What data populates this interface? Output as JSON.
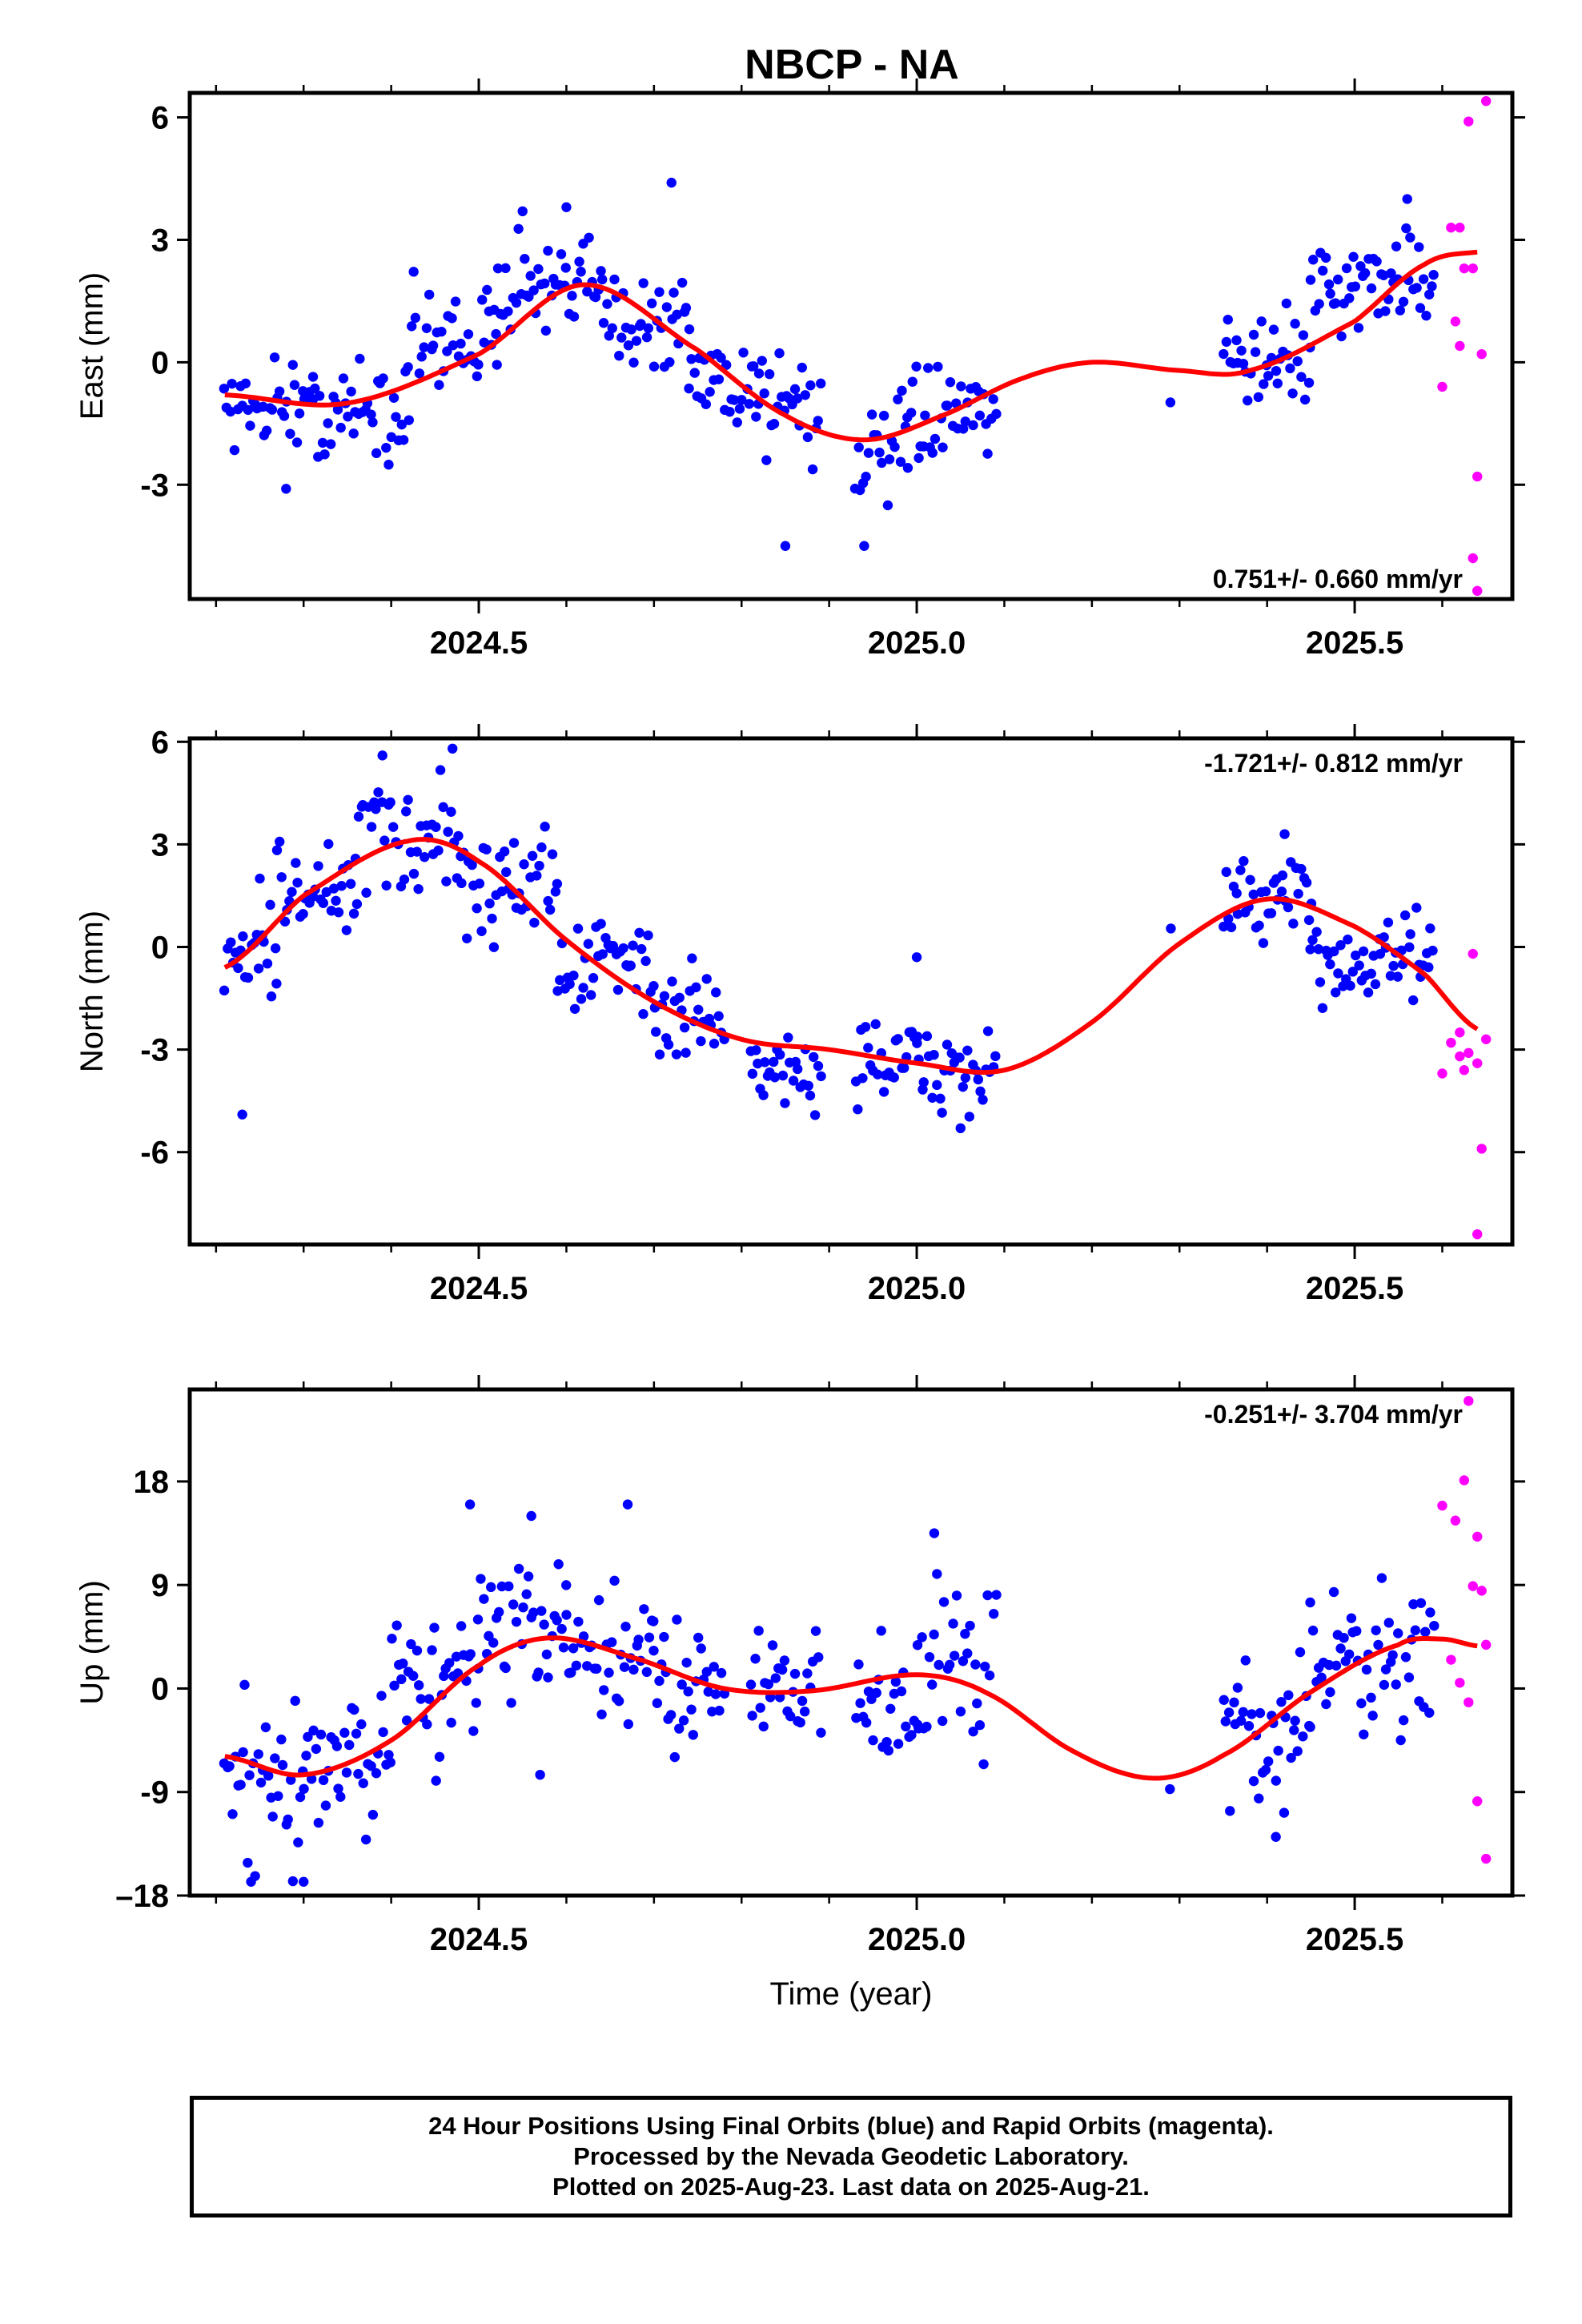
{
  "title": "NBCP - NA",
  "colors": {
    "final": "#0000ff",
    "rapid": "#ff00ff",
    "model": "#ff0000",
    "frame": "#000000"
  },
  "footer": {
    "line1": "24 Hour Positions Using Final Orbits (blue) and Rapid Orbits (magenta).",
    "line2": "Processed by the Nevada Geodetic Laboratory.",
    "line3": "Plotted on 2025-Aug-23. Last data on 2025-Aug-21."
  },
  "chart_data": [
    {
      "type": "scatter",
      "ylabel": "East (mm)",
      "rate": "0.751+/- 0.660 mm/yr",
      "xlim": [
        2024.17,
        2025.68
      ],
      "ylim": [
        -5.8,
        6.6
      ],
      "yticks": [
        6,
        3,
        0,
        -3
      ],
      "xticks": [
        2024.5,
        2025.0,
        2025.5
      ],
      "rate_position": "bottom-right",
      "model_knots": [
        [
          2024.21,
          -0.8
        ],
        [
          2024.35,
          -1.0
        ],
        [
          2024.5,
          0.2
        ],
        [
          2024.62,
          1.9
        ],
        [
          2024.75,
          0.3
        ],
        [
          2024.85,
          -1.3
        ],
        [
          2024.94,
          -1.9
        ],
        [
          2025.03,
          -1.3
        ],
        [
          2025.12,
          -0.4
        ],
        [
          2025.2,
          0.0
        ],
        [
          2025.3,
          -0.2
        ],
        [
          2025.38,
          -0.2
        ],
        [
          2025.5,
          1.0
        ],
        [
          2025.58,
          2.4
        ],
        [
          2025.64,
          2.7
        ]
      ],
      "final_segments": [
        {
          "x0": 2024.21,
          "x1": 2024.31,
          "center": -1.0,
          "spread": 1.8
        },
        {
          "x0": 2024.31,
          "x1": 2024.42,
          "center": -1.1,
          "spread": 1.9
        },
        {
          "x0": 2024.42,
          "x1": 2024.52,
          "center": 0.6,
          "spread": 2.2
        },
        {
          "x0": 2024.52,
          "x1": 2024.64,
          "center": 1.7,
          "spread": 2.0
        },
        {
          "x0": 2024.64,
          "x1": 2024.74,
          "center": 1.2,
          "spread": 2.2
        },
        {
          "x0": 2024.74,
          "x1": 2024.82,
          "center": -0.4,
          "spread": 2.0
        },
        {
          "x0": 2024.82,
          "x1": 2024.89,
          "center": -1.0,
          "spread": 2.2
        },
        {
          "x0": 2024.93,
          "x1": 2024.99,
          "center": -2.3,
          "spread": 2.0
        },
        {
          "x0": 2024.99,
          "x1": 2025.09,
          "center": -1.4,
          "spread": 1.8
        },
        {
          "x0": 2025.29,
          "x1": 2025.29,
          "center": -0.9,
          "spread": 0.2
        },
        {
          "x0": 2025.35,
          "x1": 2025.45,
          "center": 0.1,
          "spread": 1.8
        },
        {
          "x0": 2025.45,
          "x1": 2025.59,
          "center": 1.9,
          "spread": 1.9
        }
      ],
      "final_extremes": [
        [
          2024.72,
          4.4
        ],
        [
          2024.85,
          -4.5
        ],
        [
          2024.94,
          -4.5
        ],
        [
          2024.28,
          -3.1
        ],
        [
          2024.6,
          3.8
        ],
        [
          2024.55,
          3.7
        ],
        [
          2025.56,
          4.0
        ]
      ],
      "rapid": [
        [
          2025.61,
          3.3
        ],
        [
          2025.615,
          1.0
        ],
        [
          2025.62,
          0.4
        ],
        [
          2025.625,
          2.3
        ],
        [
          2025.63,
          5.9
        ],
        [
          2025.635,
          -4.8
        ],
        [
          2025.64,
          -5.6
        ],
        [
          2025.64,
          -2.8
        ],
        [
          2025.645,
          0.2
        ],
        [
          2025.65,
          6.4
        ],
        [
          2025.6,
          -0.6
        ],
        [
          2025.62,
          3.3
        ],
        [
          2025.635,
          2.3
        ]
      ]
    },
    {
      "type": "scatter",
      "ylabel": "North (mm)",
      "rate": "-1.721+/- 0.812 mm/yr",
      "xlim": [
        2024.17,
        2025.68
      ],
      "ylim": [
        -8.7,
        6.1
      ],
      "yticks": [
        6,
        3,
        0,
        -3,
        -6
      ],
      "xticks": [
        2024.5,
        2025.0,
        2025.5
      ],
      "rate_position": "top-right",
      "model_knots": [
        [
          2024.21,
          -0.6
        ],
        [
          2024.3,
          1.5
        ],
        [
          2024.42,
          3.1
        ],
        [
          2024.5,
          2.5
        ],
        [
          2024.6,
          0.2
        ],
        [
          2024.7,
          -1.6
        ],
        [
          2024.8,
          -2.7
        ],
        [
          2024.9,
          -3.0
        ],
        [
          2025.0,
          -3.4
        ],
        [
          2025.1,
          -3.6
        ],
        [
          2025.2,
          -2.2
        ],
        [
          2025.3,
          0.1
        ],
        [
          2025.4,
          1.4
        ],
        [
          2025.5,
          0.6
        ],
        [
          2025.58,
          -0.8
        ],
        [
          2025.64,
          -2.4
        ]
      ],
      "final_segments": [
        {
          "x0": 2024.21,
          "x1": 2024.27,
          "center": 0.0,
          "spread": 2.5
        },
        {
          "x0": 2024.27,
          "x1": 2024.36,
          "center": 1.6,
          "spread": 2.4
        },
        {
          "x0": 2024.36,
          "x1": 2024.48,
          "center": 3.1,
          "spread": 2.4
        },
        {
          "x0": 2024.48,
          "x1": 2024.59,
          "center": 1.8,
          "spread": 2.4
        },
        {
          "x0": 2024.59,
          "x1": 2024.7,
          "center": -0.6,
          "spread": 2.4
        },
        {
          "x0": 2024.7,
          "x1": 2024.78,
          "center": -2.0,
          "spread": 2.2
        },
        {
          "x0": 2024.81,
          "x1": 2024.89,
          "center": -3.7,
          "spread": 2.0
        },
        {
          "x0": 2024.93,
          "x1": 2025.0,
          "center": -3.3,
          "spread": 2.0
        },
        {
          "x0": 2025.0,
          "x1": 2025.09,
          "center": -3.6,
          "spread": 1.8
        },
        {
          "x0": 2025.29,
          "x1": 2025.29,
          "center": 0.5,
          "spread": 0.2
        },
        {
          "x0": 2025.35,
          "x1": 2025.45,
          "center": 1.3,
          "spread": 2.0
        },
        {
          "x0": 2025.45,
          "x1": 2025.59,
          "center": -0.4,
          "spread": 2.2
        }
      ],
      "final_extremes": [
        [
          2024.47,
          5.8
        ],
        [
          2024.39,
          5.6
        ],
        [
          2024.23,
          -4.9
        ],
        [
          2025.0,
          -0.3
        ],
        [
          2025.42,
          3.3
        ],
        [
          2025.05,
          -5.3
        ],
        [
          2024.25,
          2.0
        ]
      ],
      "rapid": [
        [
          2025.6,
          -3.7
        ],
        [
          2025.61,
          -2.8
        ],
        [
          2025.62,
          -2.5
        ],
        [
          2025.625,
          -3.6
        ],
        [
          2025.63,
          -3.1
        ],
        [
          2025.635,
          -0.2
        ],
        [
          2025.64,
          -3.4
        ],
        [
          2025.645,
          -5.9
        ],
        [
          2025.64,
          -8.4
        ],
        [
          2025.65,
          -2.7
        ],
        [
          2025.62,
          -3.2
        ]
      ]
    },
    {
      "type": "scatter",
      "ylabel": "Up (mm)",
      "xlabel": "Time (year)",
      "rate": "-0.251+/- 3.704 mm/yr",
      "xlim": [
        2024.17,
        2025.68
      ],
      "ylim": [
        -18,
        26
      ],
      "yticks": [
        18,
        9,
        0,
        -9,
        -18
      ],
      "ytick_labels": [
        "18",
        "9",
        "0",
        "-9",
        "–18"
      ],
      "xticks": [
        2024.5,
        2025.0,
        2025.5
      ],
      "rate_position": "top-right",
      "model_knots": [
        [
          2024.21,
          -5.9
        ],
        [
          2024.3,
          -7.5
        ],
        [
          2024.4,
          -4.5
        ],
        [
          2024.5,
          2.0
        ],
        [
          2024.58,
          4.4
        ],
        [
          2024.68,
          2.6
        ],
        [
          2024.78,
          0.0
        ],
        [
          2024.88,
          -0.2
        ],
        [
          2025.0,
          1.2
        ],
        [
          2025.08,
          -0.4
        ],
        [
          2025.18,
          -5.5
        ],
        [
          2025.27,
          -7.8
        ],
        [
          2025.35,
          -5.8
        ],
        [
          2025.45,
          -0.3
        ],
        [
          2025.55,
          3.8
        ],
        [
          2025.6,
          4.3
        ],
        [
          2025.64,
          3.7
        ]
      ],
      "final_segments": [
        {
          "x0": 2024.21,
          "x1": 2024.3,
          "center": -9.5,
          "spread": 12.0
        },
        {
          "x0": 2024.3,
          "x1": 2024.4,
          "center": -6.5,
          "spread": 10.0
        },
        {
          "x0": 2024.4,
          "x1": 2024.5,
          "center": 0.5,
          "spread": 11.0
        },
        {
          "x0": 2024.5,
          "x1": 2024.6,
          "center": 5.0,
          "spread": 10.0
        },
        {
          "x0": 2024.6,
          "x1": 2024.7,
          "center": 2.0,
          "spread": 10.0
        },
        {
          "x0": 2024.7,
          "x1": 2024.78,
          "center": 0.5,
          "spread": 8.0
        },
        {
          "x0": 2024.81,
          "x1": 2024.89,
          "center": 1.0,
          "spread": 10.0
        },
        {
          "x0": 2024.93,
          "x1": 2025.0,
          "center": -1.5,
          "spread": 10.0
        },
        {
          "x0": 2025.0,
          "x1": 2025.09,
          "center": 2.0,
          "spread": 12.0
        },
        {
          "x0": 2025.29,
          "x1": 2025.29,
          "center": -8.8,
          "spread": 0.4
        },
        {
          "x0": 2025.35,
          "x1": 2025.45,
          "center": -4.0,
          "spread": 11.0
        },
        {
          "x0": 2025.45,
          "x1": 2025.59,
          "center": 3.0,
          "spread": 11.0
        }
      ],
      "final_extremes": [
        [
          2024.49,
          16.0
        ],
        [
          2024.67,
          16.0
        ],
        [
          2024.56,
          15.0
        ],
        [
          2024.24,
          -16.8
        ],
        [
          2024.3,
          -16.8
        ],
        [
          2025.02,
          13.5
        ],
        [
          2025.41,
          -12.9
        ],
        [
          2024.57,
          -7.5
        ]
      ],
      "rapid": [
        [
          2025.6,
          15.9
        ],
        [
          2025.61,
          2.5
        ],
        [
          2025.615,
          14.6
        ],
        [
          2025.62,
          0.5
        ],
        [
          2025.625,
          18.1
        ],
        [
          2025.63,
          -1.2
        ],
        [
          2025.635,
          8.9
        ],
        [
          2025.64,
          -9.8
        ],
        [
          2025.64,
          13.2
        ],
        [
          2025.645,
          8.5
        ],
        [
          2025.65,
          3.8
        ],
        [
          2025.65,
          -14.8
        ],
        [
          2025.63,
          25.0
        ]
      ]
    }
  ]
}
